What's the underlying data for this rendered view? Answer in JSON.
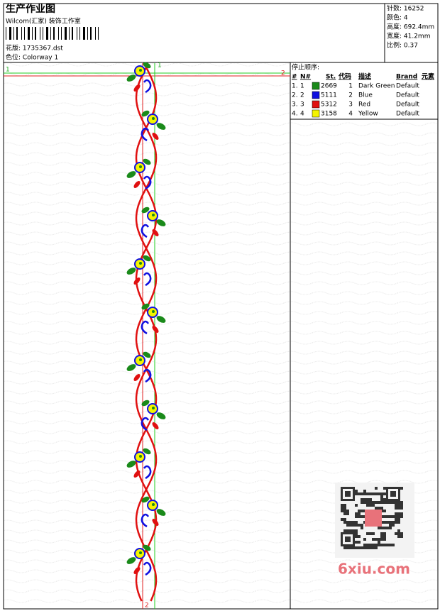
{
  "header": {
    "title": "生产作业图",
    "studio": "Wilcom(汇家) 装饰工作室",
    "design": "花版: 1735367.dst",
    "colorway": "色位: Colorway 1"
  },
  "info": [
    "针数: 16252",
    "颜色: 4",
    "高度: 692.4mm",
    "宽度: 41.2mm",
    "比例: 0.37"
  ],
  "stop_sequence": {
    "title": "停止顺序:",
    "columns": [
      "#",
      "N#",
      "St.",
      "代码",
      "描述",
      "Brand",
      "元素"
    ],
    "rows": [
      {
        "index": "1.",
        "n": "1",
        "color": "#1a8a1a",
        "stitches": "2669",
        "code": "1",
        "description": "Dark Green",
        "brand": "Default"
      },
      {
        "index": "2.",
        "n": "2",
        "color": "#1010e0",
        "stitches": "5111",
        "code": "2",
        "description": "Blue",
        "brand": "Default"
      },
      {
        "index": "3.",
        "n": "3",
        "color": "#e01010",
        "stitches": "5312",
        "code": "3",
        "description": "Red",
        "brand": "Default"
      },
      {
        "index": "4.",
        "n": "4",
        "color": "#f4f400",
        "stitches": "3158",
        "code": "4",
        "description": "Yellow",
        "brand": "Default"
      }
    ]
  },
  "markers": {
    "start_left": "1",
    "end_right": "2",
    "start_top": "1",
    "end_bottom": "2"
  },
  "watermark": "6xiu.com"
}
